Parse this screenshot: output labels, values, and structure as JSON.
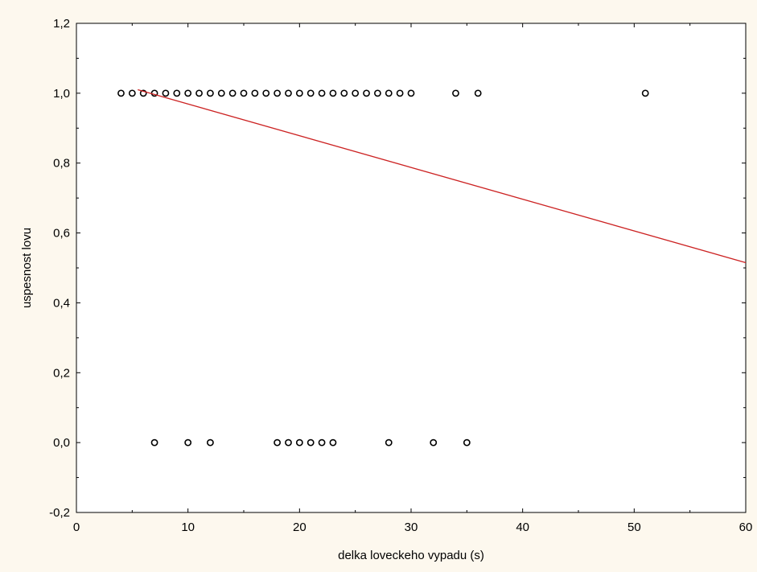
{
  "chart_data": {
    "type": "scatter",
    "xlabel": "delka loveckeho vypadu (s)",
    "ylabel": "uspesnost lovu",
    "xlim": [
      0,
      60
    ],
    "ylim": [
      -0.2,
      1.2
    ],
    "x_ticks": [
      0,
      10,
      20,
      30,
      40,
      50,
      60
    ],
    "y_ticks": [
      -0.2,
      0.0,
      0.2,
      0.4,
      0.6,
      0.8,
      1.0,
      1.2
    ],
    "x_tick_labels": [
      "0",
      "10",
      "20",
      "30",
      "40",
      "50",
      "60"
    ],
    "y_tick_labels": [
      "-0,2",
      "0,0",
      "0,2",
      "0,4",
      "0,6",
      "0,8",
      "1,0",
      "1,2"
    ],
    "grid": false,
    "series": [
      {
        "marker": "open-circle",
        "color": "#000000",
        "points": [
          [
            4,
            1
          ],
          [
            5,
            1
          ],
          [
            6,
            1
          ],
          [
            7,
            1
          ],
          [
            8,
            1
          ],
          [
            9,
            1
          ],
          [
            10,
            1
          ],
          [
            11,
            1
          ],
          [
            12,
            1
          ],
          [
            13,
            1
          ],
          [
            14,
            1
          ],
          [
            15,
            1
          ],
          [
            16,
            1
          ],
          [
            17,
            1
          ],
          [
            18,
            1
          ],
          [
            19,
            1
          ],
          [
            20,
            1
          ],
          [
            21,
            1
          ],
          [
            22,
            1
          ],
          [
            23,
            1
          ],
          [
            24,
            1
          ],
          [
            25,
            1
          ],
          [
            26,
            1
          ],
          [
            27,
            1
          ],
          [
            28,
            1
          ],
          [
            29,
            1
          ],
          [
            30,
            1
          ],
          [
            34,
            1
          ],
          [
            36,
            1
          ],
          [
            51,
            1
          ],
          [
            7,
            0
          ],
          [
            10,
            0
          ],
          [
            12,
            0
          ],
          [
            18,
            0
          ],
          [
            19,
            0
          ],
          [
            20,
            0
          ],
          [
            21,
            0
          ],
          [
            22,
            0
          ],
          [
            23,
            0
          ],
          [
            28,
            0
          ],
          [
            32,
            0
          ],
          [
            35,
            0
          ]
        ]
      }
    ],
    "fit_line": {
      "color": "#cc2222",
      "points": [
        [
          5.5,
          1.01
        ],
        [
          60,
          0.515
        ]
      ]
    }
  }
}
